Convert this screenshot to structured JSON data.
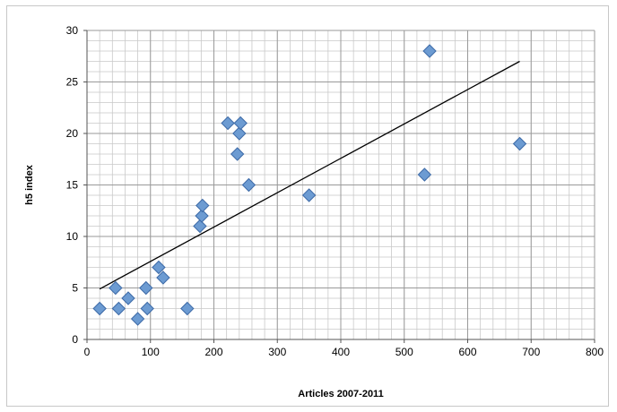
{
  "chart_data": {
    "type": "scatter",
    "title": "",
    "xlabel": "Articles 2007-2011",
    "ylabel": "h5 index",
    "xlim": [
      0,
      800
    ],
    "ylim": [
      0,
      30
    ],
    "x_ticks": [
      0,
      100,
      200,
      300,
      400,
      500,
      600,
      700,
      800
    ],
    "y_ticks": [
      0,
      5,
      10,
      15,
      20,
      25,
      30
    ],
    "grid": true,
    "legend": "none",
    "marker": "diamond",
    "colors": {
      "marker_fill": "#6c9bd2",
      "marker_edge": "#3d6aa7",
      "trendline": "#000000",
      "grid": "#9a9a9a"
    },
    "series": [
      {
        "points": [
          {
            "x": 20,
            "y": 3
          },
          {
            "x": 45,
            "y": 5
          },
          {
            "x": 50,
            "y": 3
          },
          {
            "x": 65,
            "y": 4
          },
          {
            "x": 80,
            "y": 2
          },
          {
            "x": 93,
            "y": 5
          },
          {
            "x": 95,
            "y": 3
          },
          {
            "x": 113,
            "y": 7
          },
          {
            "x": 120,
            "y": 6
          },
          {
            "x": 158,
            "y": 3
          },
          {
            "x": 178,
            "y": 11
          },
          {
            "x": 181,
            "y": 12
          },
          {
            "x": 182,
            "y": 13
          },
          {
            "x": 222,
            "y": 21
          },
          {
            "x": 237,
            "y": 18
          },
          {
            "x": 240,
            "y": 20
          },
          {
            "x": 242,
            "y": 21
          },
          {
            "x": 255,
            "y": 15
          },
          {
            "x": 350,
            "y": 14
          },
          {
            "x": 532,
            "y": 16
          },
          {
            "x": 540,
            "y": 28
          },
          {
            "x": 682,
            "y": 19
          }
        ]
      }
    ],
    "trendline": {
      "type": "linear",
      "x_start": 20,
      "y_start": 4.9,
      "x_end": 682,
      "y_end": 27.0
    }
  }
}
